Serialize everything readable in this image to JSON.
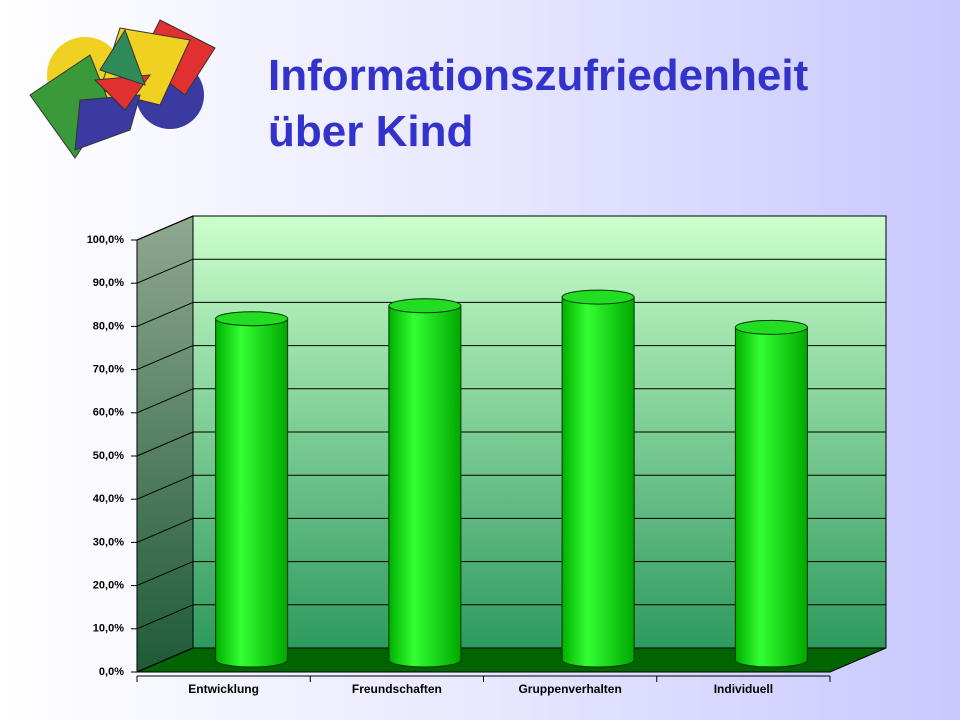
{
  "chart_data": {
    "type": "bar",
    "title": "Informationszufriedenheit über Kind",
    "categories": [
      "Entwicklung",
      "Freundschaften",
      "Gruppenverhalten",
      "Individuell"
    ],
    "values": [
      79,
      82,
      84,
      77
    ],
    "color": "#00e600",
    "ylim": [
      0,
      100
    ],
    "yticks": [
      {
        "value": 0,
        "label": "0,0%"
      },
      {
        "value": 10,
        "label": "10,0%"
      },
      {
        "value": 20,
        "label": "20,0%"
      },
      {
        "value": 30,
        "label": "30,0%"
      },
      {
        "value": 40,
        "label": "40,0%"
      },
      {
        "value": 50,
        "label": "50,0%"
      },
      {
        "value": 60,
        "label": "60,0%"
      },
      {
        "value": 70,
        "label": "70,0%"
      },
      {
        "value": 80,
        "label": "80,0%"
      },
      {
        "value": 90,
        "label": "90,0%"
      },
      {
        "value": 100,
        "label": "100,0%"
      }
    ],
    "grid": true
  }
}
